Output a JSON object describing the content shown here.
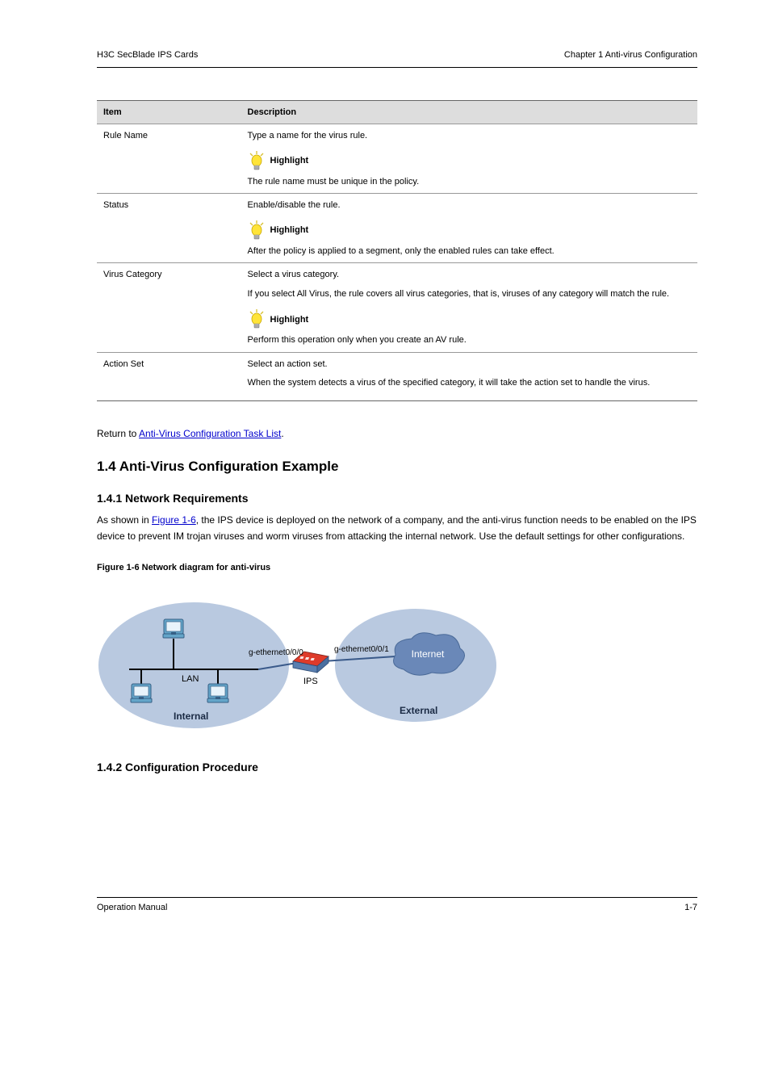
{
  "header": {
    "left": "H3C SecBlade IPS Cards",
    "right": "Chapter 1 Anti-virus Configuration"
  },
  "table": {
    "cols": [
      "Item",
      "Description"
    ],
    "rows": [
      {
        "item": "Rule Name",
        "desc_top": "Type a name for the virus rule.",
        "highlight_note": "The rule name must be unique in the policy."
      },
      {
        "item": "Status",
        "desc_top": "Enable/disable the rule.",
        "highlight_note": "After the policy is applied to a segment, only the enabled rules can take effect."
      },
      {
        "item": "Virus Category",
        "desc_top": "Select a virus category.",
        "desc_mid": "If you select All Virus, the rule covers all virus categories, that is, viruses of any category will match the rule.",
        "highlight_note": "Perform this operation only when you create an AV rule."
      },
      {
        "item": "Action Set",
        "desc_top": "Select an action set.",
        "desc_extra": "When the system detects a virus of the specified category, it will take the action set to handle the virus."
      }
    ]
  },
  "sections": {
    "return_link_prefix": "Return to",
    "return_link": "Anti-Virus Configuration Task List",
    "return_suffix": ".",
    "conf_example_title": "1.4  Anti-Virus Configuration Example",
    "net_req_title": "1.4.1  Network Requirements",
    "net_req_para": [
      "As shown in ",
      "Figure 1-6",
      ", the IPS device is deployed on the network of a company, and the anti-virus function needs to be enabled on the IPS device to prevent IM trojan viruses and worm viruses from attacking the internal network. Use the default settings for other configurations."
    ],
    "link_figure": "Figure 1-6",
    "figure_caption": "Figure 1-6 Network diagram for anti-virus",
    "conf_proc_title": "1.4.2  Configuration Procedure"
  },
  "diagram": {
    "labels": {
      "lan": "LAN",
      "ips": "IPS",
      "internet": "Internet",
      "internal": "Internal",
      "external": "External",
      "iface_left": "g-ethernet0/0/0",
      "iface_right": "g-ethernet0/0/1"
    },
    "colors": {
      "ellipse_fill": "#b9c9e0",
      "internet_oval": "#6a88b8",
      "text_dark": "#1a2a44",
      "text_white": "#ffffff",
      "wire": "#3a5a8a",
      "ips_body": "#de3b2a",
      "ips_edge": "#5a7fb0",
      "pc_body": "#64a5c9",
      "pc_dark": "#365f85"
    }
  },
  "footer": {
    "left": "Operation Manual",
    "right": "1-7"
  }
}
